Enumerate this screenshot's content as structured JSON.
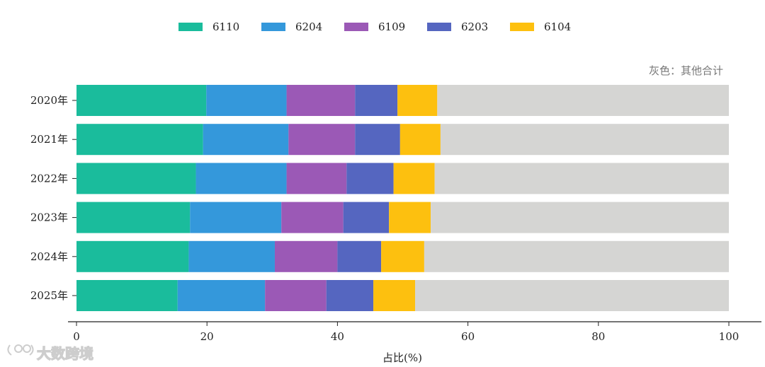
{
  "chart_data": {
    "type": "bar",
    "orientation": "horizontal",
    "stacked": true,
    "categories": [
      "2020年",
      "2021年",
      "2022年",
      "2023年",
      "2024年",
      "2025年"
    ],
    "series": [
      {
        "name": "6110",
        "color": "#1abc9c",
        "values": [
          19.9,
          19.4,
          18.3,
          17.4,
          17.2,
          15.5
        ]
      },
      {
        "name": "6204",
        "color": "#3498db",
        "values": [
          12.3,
          13.1,
          13.9,
          14.0,
          13.2,
          13.4
        ]
      },
      {
        "name": "6109",
        "color": "#9b59b6",
        "values": [
          10.5,
          10.2,
          9.2,
          9.5,
          9.6,
          9.4
        ]
      },
      {
        "name": "6203",
        "color": "#5566c0",
        "values": [
          6.5,
          6.9,
          7.2,
          7.0,
          6.7,
          7.2
        ]
      },
      {
        "name": "6104",
        "color": "#fdc00f",
        "values": [
          6.1,
          6.2,
          6.3,
          6.4,
          6.6,
          6.4
        ]
      }
    ],
    "remainder_color": "#d5d5d3",
    "xlim": [
      0,
      100
    ],
    "xticks": [
      "0",
      "20",
      "40",
      "60",
      "80",
      "100"
    ],
    "xlabel": "占比(%)",
    "legend_position": "top-center",
    "annotation": "灰色：其他合计",
    "grid": false
  },
  "watermark": {
    "text": "大数跨境"
  }
}
